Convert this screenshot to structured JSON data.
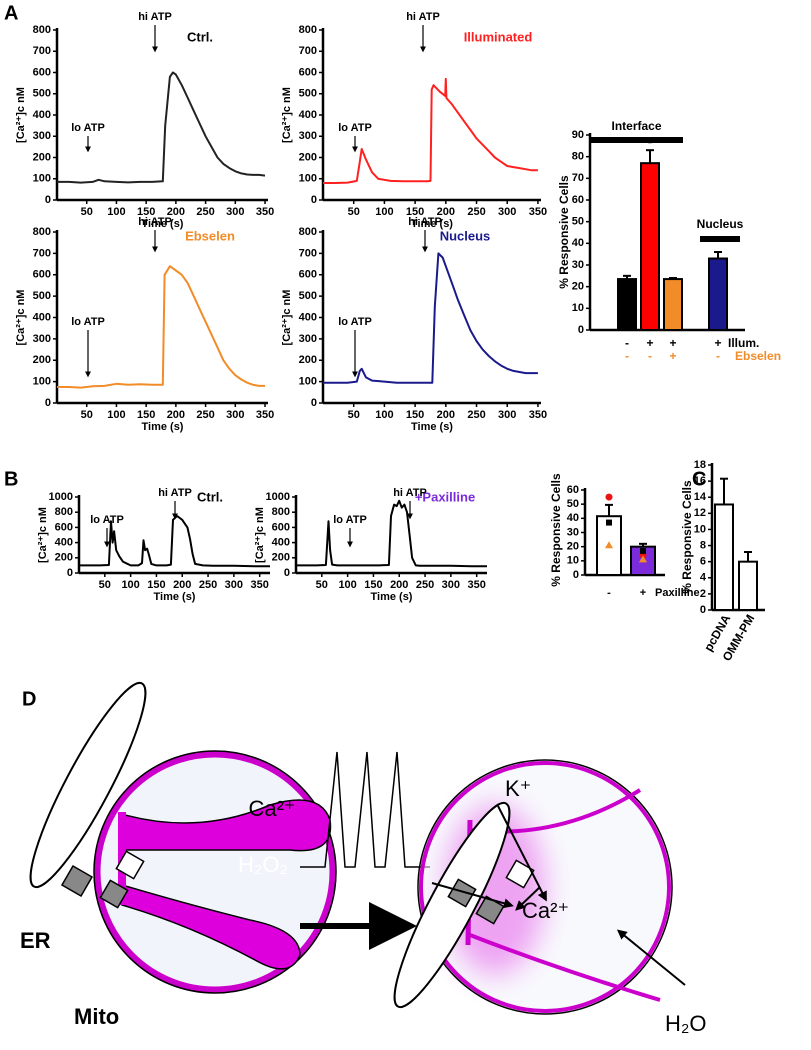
{
  "panel_labels": [
    "A",
    "B",
    "C",
    "D"
  ],
  "chart_data": [
    {
      "type": "line",
      "title": "Ctrl.",
      "title_color": "#000000",
      "color": "#222222",
      "xlabel": "Time (s)",
      "ylabel": "[Ca²⁺]c nM",
      "annotations": [
        "lo ATP",
        "hi ATP"
      ],
      "x": [
        0,
        20,
        40,
        60,
        70,
        80,
        100,
        120,
        140,
        160,
        178,
        182,
        190,
        195,
        200,
        210,
        220,
        230,
        240,
        250,
        260,
        270,
        280,
        290,
        300,
        310,
        320,
        330,
        340,
        350
      ],
      "values": [
        85,
        85,
        82,
        85,
        95,
        88,
        85,
        83,
        85,
        85,
        88,
        350,
        580,
        600,
        590,
        540,
        480,
        420,
        360,
        300,
        250,
        200,
        170,
        150,
        135,
        125,
        120,
        118,
        118,
        115
      ],
      "xlim": [
        0,
        355
      ],
      "xticks": [
        50,
        100,
        150,
        200,
        250,
        300,
        350
      ],
      "ylim": [
        0,
        800
      ],
      "yticks": [
        0,
        100,
        200,
        300,
        400,
        500,
        600,
        700,
        800
      ]
    },
    {
      "type": "line",
      "title": "Illuminated",
      "title_color": "#ff2020",
      "color": "#ff2020",
      "xlabel": "Time (s)",
      "ylabel": "[Ca²⁺]c nM",
      "annotations": [
        "lo ATP",
        "hi ATP"
      ],
      "x": [
        0,
        20,
        40,
        55,
        60,
        63,
        70,
        80,
        90,
        110,
        130,
        150,
        170,
        175,
        177,
        180,
        190,
        199,
        200,
        201,
        210,
        220,
        230,
        240,
        250,
        260,
        270,
        280,
        290,
        300,
        310,
        320,
        330,
        340,
        350
      ],
      "values": [
        80,
        80,
        82,
        90,
        180,
        240,
        190,
        130,
        100,
        90,
        88,
        88,
        88,
        90,
        520,
        540,
        510,
        490,
        570,
        480,
        450,
        410,
        370,
        330,
        290,
        260,
        230,
        200,
        180,
        160,
        155,
        150,
        145,
        140,
        140
      ],
      "xlim": [
        0,
        355
      ],
      "xticks": [
        50,
        100,
        150,
        200,
        250,
        300,
        350
      ],
      "ylim": [
        0,
        800
      ],
      "yticks": [
        0,
        100,
        200,
        300,
        400,
        500,
        600,
        700,
        800
      ]
    },
    {
      "type": "line",
      "title": "Ebselen",
      "title_color": "#f28c28",
      "color": "#f28c28",
      "xlabel": "Time (s)",
      "ylabel": "[Ca²⁺]c nM",
      "annotations": [
        "lo ATP",
        "hi ATP"
      ],
      "x": [
        0,
        20,
        40,
        60,
        80,
        100,
        120,
        140,
        160,
        178,
        181,
        190,
        200,
        210,
        220,
        230,
        240,
        250,
        260,
        270,
        280,
        290,
        300,
        310,
        320,
        330,
        340,
        350
      ],
      "values": [
        75,
        75,
        72,
        78,
        80,
        90,
        85,
        88,
        85,
        85,
        600,
        640,
        620,
        600,
        560,
        500,
        440,
        380,
        320,
        260,
        200,
        160,
        130,
        110,
        95,
        85,
        80,
        80
      ],
      "xlim": [
        0,
        355
      ],
      "xticks": [
        50,
        100,
        150,
        200,
        250,
        300,
        350
      ],
      "ylim": [
        0,
        800
      ],
      "yticks": [
        0,
        100,
        200,
        300,
        400,
        500,
        600,
        700,
        800
      ]
    },
    {
      "type": "line",
      "title": "Nucleus",
      "title_color": "#1a1a8c",
      "color": "#1a1a8c",
      "xlabel": "Time (s)",
      "ylabel": "[Ca²⁺]c nM",
      "annotations": [
        "lo ATP",
        "hi ATP"
      ],
      "x": [
        0,
        20,
        40,
        55,
        60,
        63,
        70,
        80,
        100,
        120,
        140,
        160,
        178,
        182,
        188,
        195,
        200,
        210,
        220,
        230,
        240,
        250,
        260,
        270,
        280,
        290,
        300,
        310,
        320,
        330,
        340,
        350
      ],
      "values": [
        95,
        95,
        95,
        100,
        150,
        160,
        120,
        105,
        100,
        95,
        95,
        95,
        95,
        450,
        700,
        680,
        640,
        560,
        480,
        410,
        340,
        290,
        250,
        220,
        195,
        175,
        160,
        150,
        145,
        140,
        140,
        140
      ],
      "xlim": [
        0,
        355
      ],
      "xticks": [
        50,
        100,
        150,
        200,
        250,
        300,
        350
      ],
      "ylim": [
        0,
        800
      ],
      "yticks": [
        0,
        100,
        200,
        300,
        400,
        500,
        600,
        700,
        800
      ]
    },
    {
      "type": "bar",
      "ylabel": "% Responsive Cells",
      "values": [
        23.5,
        77,
        23.5,
        33
      ],
      "errors": [
        1.5,
        6,
        0.5,
        3
      ],
      "colors": [
        "#000000",
        "#ff0000",
        "#f28c28",
        "#1a1a8c"
      ],
      "annotations": [
        "*"
      ],
      "groups": [
        "Interface",
        "Nucleus"
      ],
      "rows": [
        {
          "label": "Illum.",
          "color": "#000000",
          "cells": [
            "-",
            "+",
            "+",
            "+"
          ]
        },
        {
          "label": "Ebselen",
          "color": "#f28c28",
          "cells": [
            "-",
            "-",
            "+",
            "-"
          ]
        }
      ],
      "ylim": [
        0,
        90
      ],
      "yticks": [
        0,
        10,
        20,
        30,
        40,
        50,
        60,
        70,
        80,
        90
      ]
    },
    {
      "type": "line",
      "title": "Ctrl.",
      "title_color": "#000000",
      "color": "#000000",
      "xlabel": "Time (s)",
      "ylabel": "[Ca²⁺]c nM",
      "annotations": [
        "lo ATP",
        "hi ATP"
      ],
      "x": [
        0,
        20,
        40,
        58,
        62,
        65,
        68,
        72,
        78,
        85,
        100,
        115,
        122,
        125,
        128,
        132,
        135,
        140,
        150,
        170,
        178,
        182,
        190,
        200,
        210,
        215,
        220,
        225,
        240,
        260,
        300,
        340,
        370
      ],
      "values": [
        100,
        100,
        100,
        105,
        680,
        400,
        550,
        300,
        220,
        150,
        100,
        100,
        130,
        430,
        300,
        320,
        250,
        120,
        100,
        100,
        110,
        700,
        750,
        700,
        600,
        450,
        250,
        120,
        100,
        95,
        95,
        90,
        90
      ],
      "xlim": [
        0,
        370
      ],
      "xticks": [
        50,
        100,
        150,
        200,
        250,
        300,
        350
      ],
      "ylim": [
        0,
        1000
      ],
      "yticks": [
        0,
        200,
        400,
        600,
        800,
        1000
      ]
    },
    {
      "type": "line",
      "title": "+Paxilline",
      "title_color": "#7b2bd9",
      "color": "#000000",
      "xlabel": "Time (s)",
      "ylabel": "[Ca²⁺]c nM",
      "annotations": [
        "lo ATP",
        "hi ATP"
      ],
      "x": [
        0,
        20,
        40,
        58,
        63,
        66,
        70,
        80,
        100,
        120,
        140,
        160,
        180,
        184,
        190,
        195,
        200,
        205,
        210,
        215,
        220,
        225,
        232,
        240,
        260,
        300,
        340,
        370
      ],
      "values": [
        100,
        100,
        100,
        105,
        680,
        300,
        110,
        100,
        100,
        100,
        100,
        100,
        105,
        750,
        900,
        880,
        950,
        860,
        900,
        800,
        500,
        200,
        100,
        95,
        95,
        95,
        90,
        90
      ],
      "xlim": [
        0,
        370
      ],
      "xticks": [
        50,
        100,
        150,
        200,
        250,
        300,
        350
      ],
      "ylim": [
        0,
        1000
      ],
      "yticks": [
        0,
        200,
        400,
        600,
        800,
        1000
      ]
    },
    {
      "type": "bar",
      "ylabel": "% Responsive Cells",
      "xlabel": "Paxilline",
      "categories": [
        "-",
        "+"
      ],
      "values": [
        41.5,
        20
      ],
      "errors": [
        8,
        2
      ],
      "colors": [
        "#ffffff",
        "#7b2bd9"
      ],
      "points": [
        {
          "marker": "circle",
          "color": "#ee1111",
          "values": [
            55,
            14
          ]
        },
        {
          "marker": "square",
          "color": "#000000",
          "values": [
            37,
            17
          ]
        },
        {
          "marker": "triangle",
          "color": "#f28c28",
          "values": [
            21,
            11
          ]
        }
      ],
      "ylim": [
        0,
        60
      ],
      "yticks": [
        0,
        10,
        20,
        30,
        40,
        50,
        60
      ]
    },
    {
      "type": "bar",
      "ylabel": "% Responsive Cells",
      "categories": [
        "pcDNA",
        "OMM-PM"
      ],
      "values": [
        13.1,
        6
      ],
      "errors": [
        3.2,
        1.2
      ],
      "colors": [
        "#ffffff",
        "#ffffff"
      ],
      "ylim": [
        0,
        18
      ],
      "yticks": [
        0,
        2,
        4,
        6,
        8,
        10,
        12,
        14,
        16,
        18
      ]
    }
  ],
  "diagram": {
    "spike_label": "Ca²⁺",
    "left": {
      "er": "ER",
      "mito": "Mito",
      "h2o2": "H₂O₂"
    },
    "right": {
      "k": "K⁺",
      "ca": "Ca²⁺",
      "h2o": "H₂O"
    }
  }
}
